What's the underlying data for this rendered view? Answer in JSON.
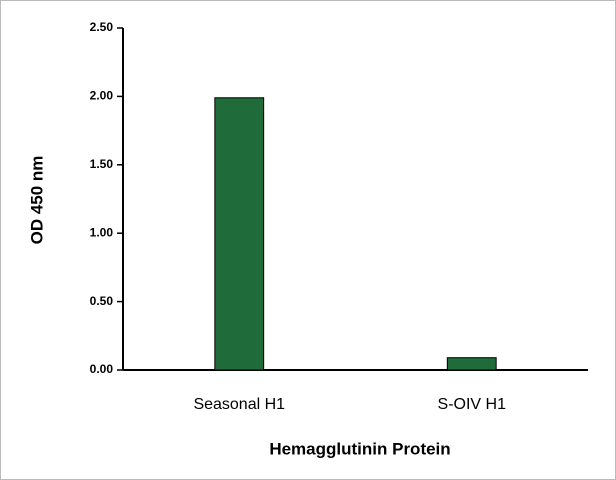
{
  "chart_data": {
    "type": "bar",
    "categories": [
      "Seasonal H1",
      "S-OIV H1"
    ],
    "values": [
      1.99,
      0.09
    ],
    "color": "#1f6b3a",
    "xlabel": "Hemagglutinin Protein",
    "ylabel": "OD 450 nm",
    "ylim": [
      0,
      2.5
    ],
    "yticks": [
      {
        "value": 0,
        "label": "0.00"
      },
      {
        "value": 0.5,
        "label": "0.50"
      },
      {
        "value": 1,
        "label": "1.00"
      },
      {
        "value": 1.5,
        "label": "1.50"
      },
      {
        "value": 2,
        "label": "2.00"
      },
      {
        "value": 2.5,
        "label": "2.50"
      }
    ]
  }
}
